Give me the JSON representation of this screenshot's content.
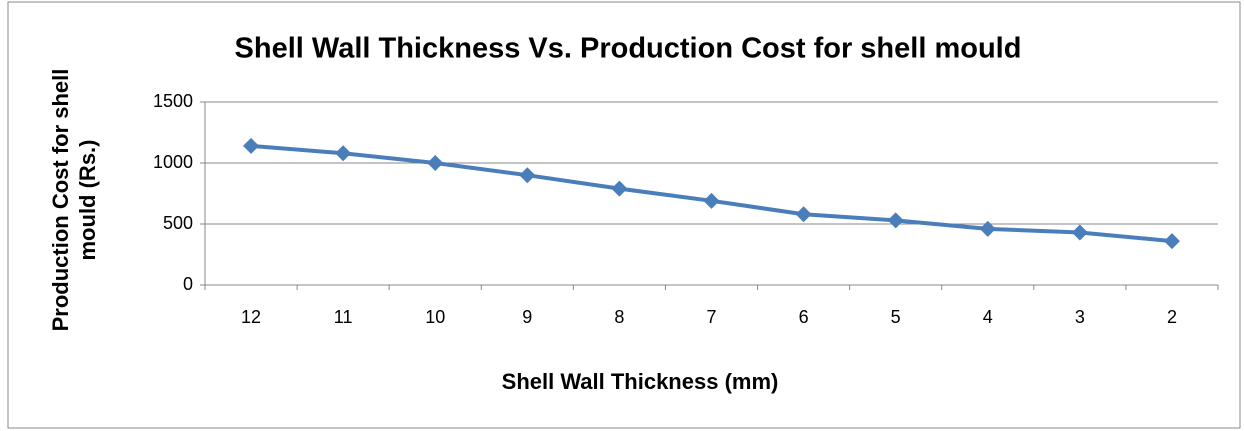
{
  "chart_data": {
    "type": "line",
    "title": "Shell Wall Thickness Vs. Production Cost for shell mould",
    "xlabel": "Shell Wall Thickness (mm)",
    "ylabel": [
      "Production Cost for shell",
      "mould (Rs.)"
    ],
    "categories": [
      "12",
      "11",
      "10",
      "9",
      "8",
      "7",
      "6",
      "5",
      "4",
      "3",
      "2"
    ],
    "values": [
      1140,
      1080,
      1000,
      900,
      790,
      690,
      580,
      530,
      460,
      430,
      360
    ],
    "color": "#4a7ebb",
    "ylim": [
      0,
      1500
    ],
    "yticks": [
      0,
      500,
      1000,
      1500
    ],
    "grid": true
  }
}
